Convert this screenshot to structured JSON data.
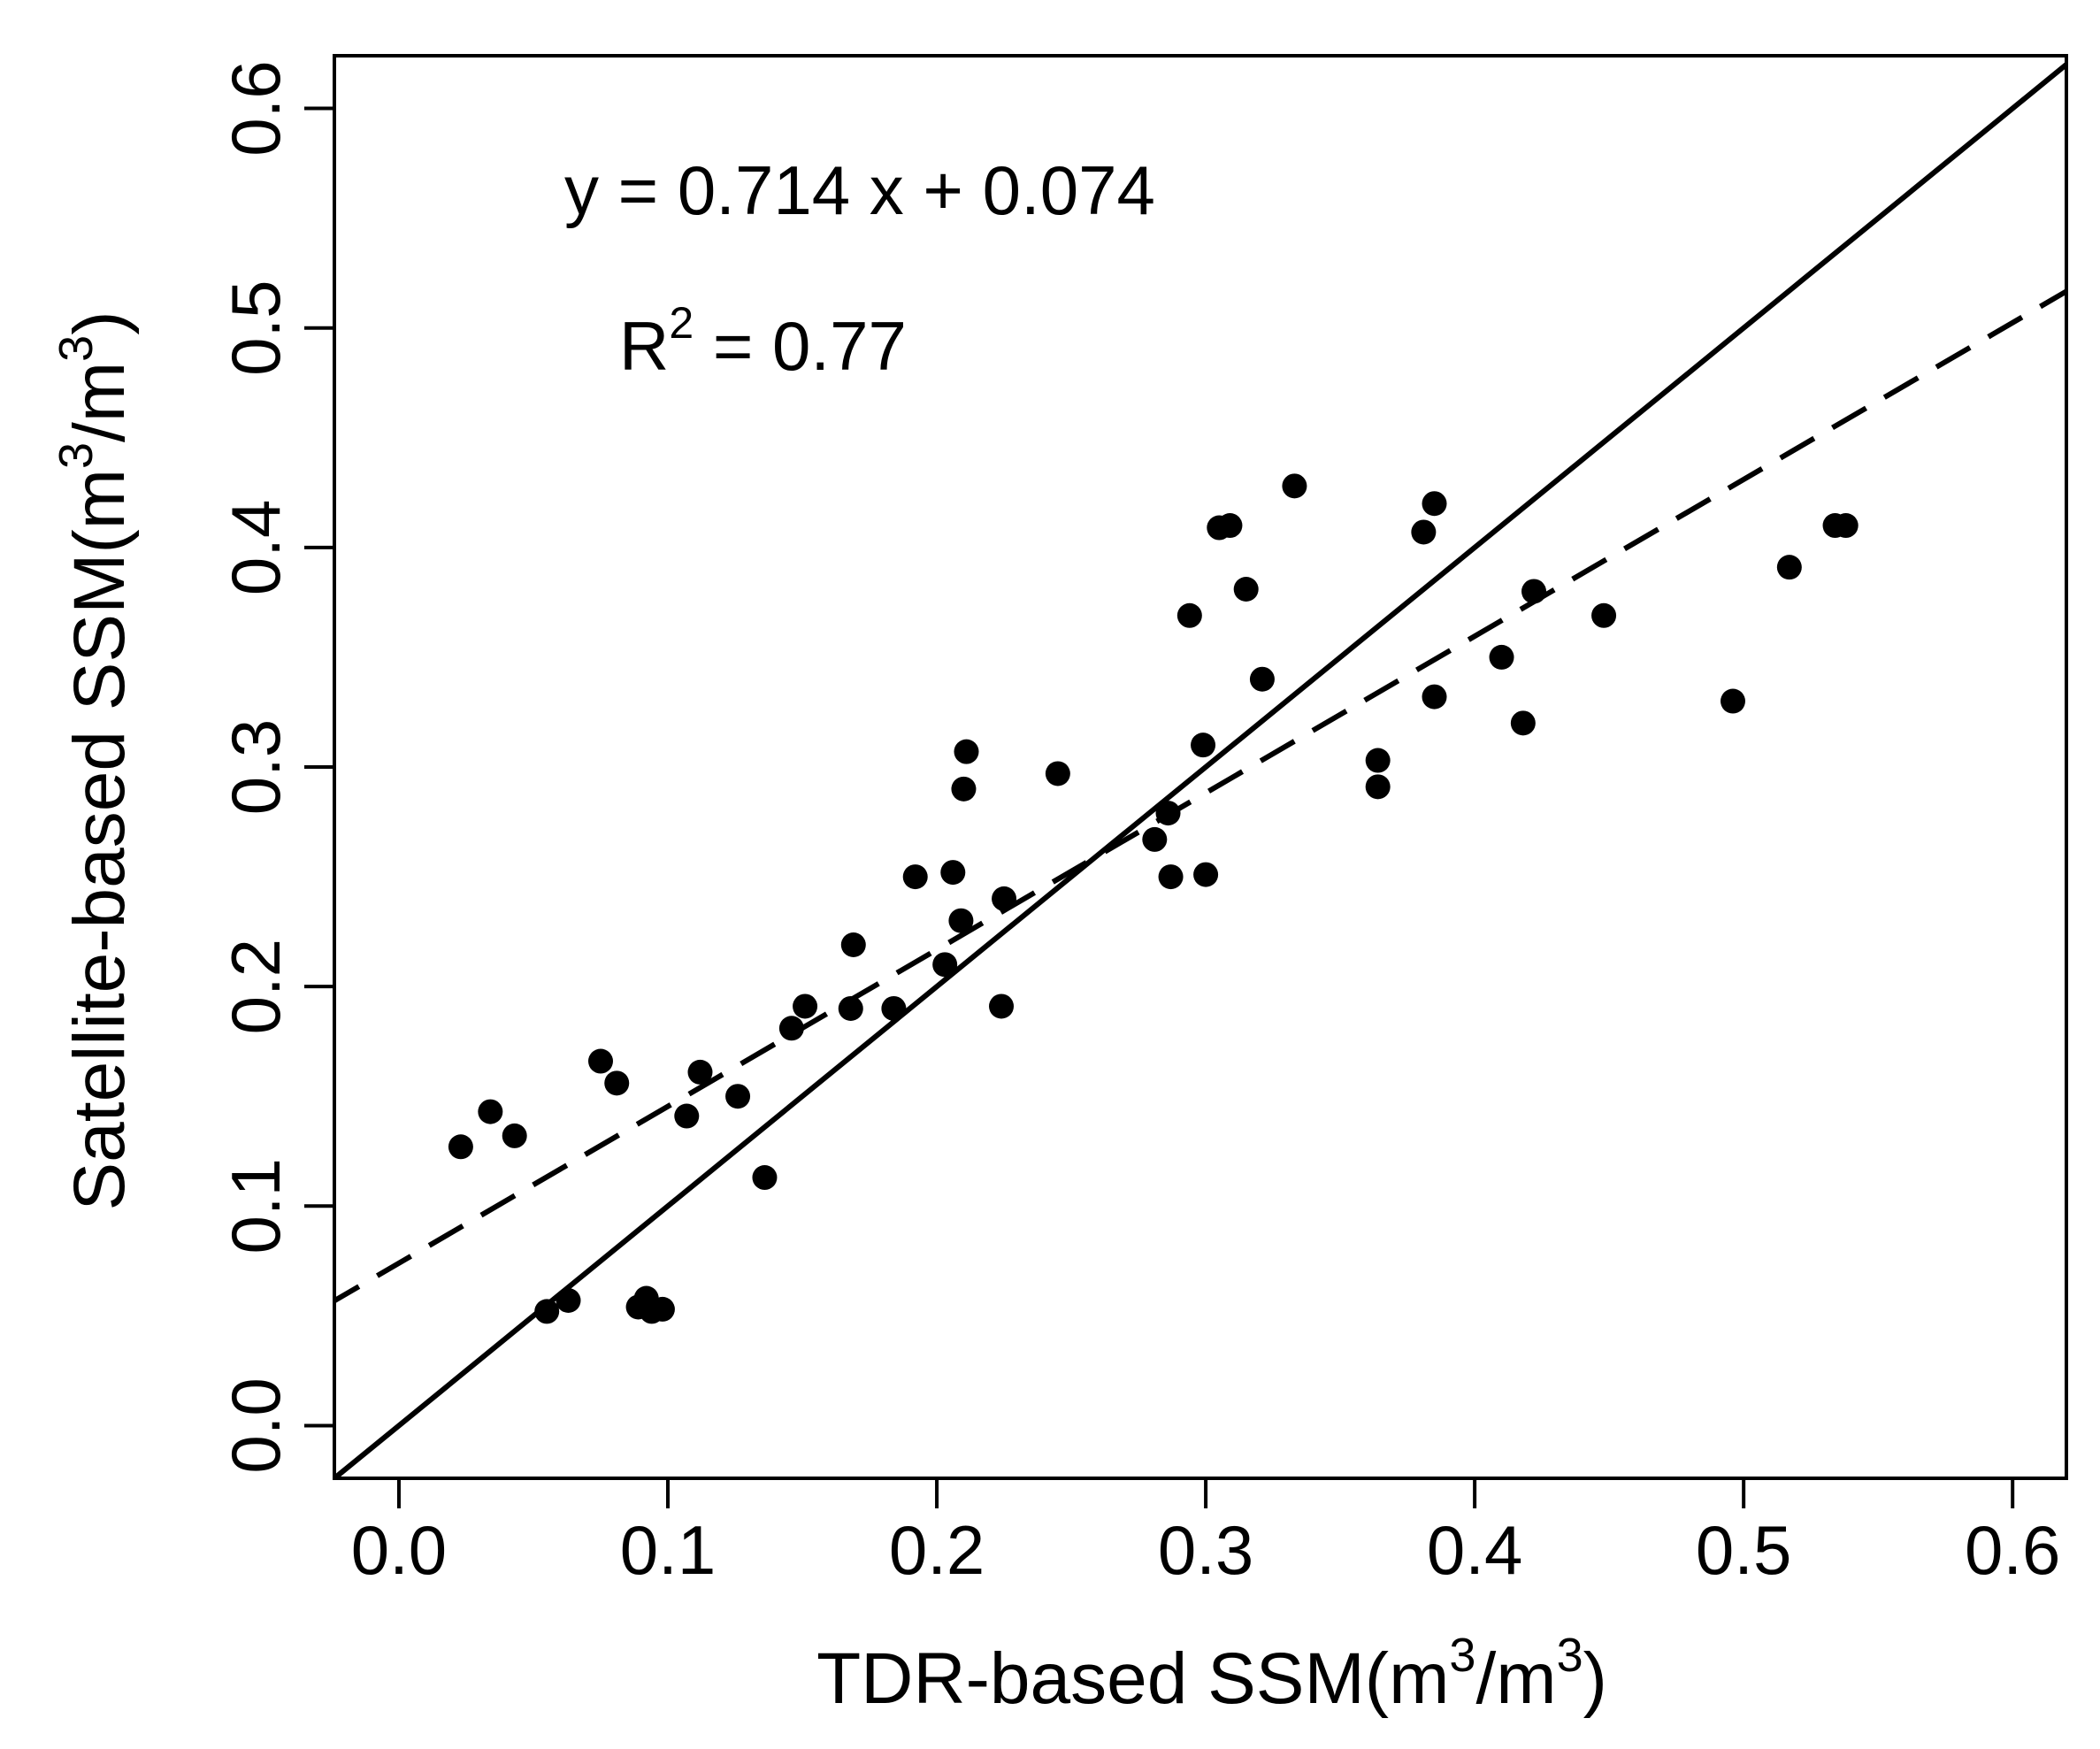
{
  "chart_data": {
    "type": "scatter",
    "xlabel": {
      "base": "TDR-based SSM(m",
      "sup1": "3",
      "mid": "/m",
      "sup2": "3",
      "end": ")"
    },
    "ylabel": {
      "base": "Satellite-based SSM(m",
      "sup1": "3",
      "mid": "/m",
      "sup2": "3",
      "end": ")"
    },
    "xlim": [
      -0.024,
      0.62
    ],
    "ylim": [
      -0.024,
      0.624
    ],
    "xticks": [
      0.0,
      0.1,
      0.2,
      0.3,
      0.4,
      0.5,
      0.6
    ],
    "yticks": [
      0.0,
      0.1,
      0.2,
      0.3,
      0.4,
      0.5,
      0.6
    ],
    "xtick_labels": [
      "0.0",
      "0.1",
      "0.2",
      "0.3",
      "0.4",
      "0.5",
      "0.6"
    ],
    "ytick_labels": [
      "0.0",
      "0.1",
      "0.2",
      "0.3",
      "0.4",
      "0.5",
      "0.6"
    ],
    "annotations": {
      "equation": "y = 0.714 x + 0.074",
      "r2_prefix": "R",
      "r2_sup": "2",
      "r2_value": " = 0.77"
    },
    "lines": [
      {
        "name": "1:1 line",
        "style": "solid",
        "slope": 1.0,
        "intercept": 0.0
      },
      {
        "name": "regression",
        "style": "dashed",
        "slope": 0.714,
        "intercept": 0.074
      }
    ],
    "color": "#000000",
    "points": [
      {
        "x": 0.023,
        "y": 0.127
      },
      {
        "x": 0.034,
        "y": 0.143
      },
      {
        "x": 0.043,
        "y": 0.132
      },
      {
        "x": 0.055,
        "y": 0.052
      },
      {
        "x": 0.063,
        "y": 0.057
      },
      {
        "x": 0.075,
        "y": 0.166
      },
      {
        "x": 0.081,
        "y": 0.156
      },
      {
        "x": 0.089,
        "y": 0.054
      },
      {
        "x": 0.092,
        "y": 0.058
      },
      {
        "x": 0.094,
        "y": 0.052
      },
      {
        "x": 0.098,
        "y": 0.053
      },
      {
        "x": 0.107,
        "y": 0.141
      },
      {
        "x": 0.112,
        "y": 0.161
      },
      {
        "x": 0.126,
        "y": 0.15
      },
      {
        "x": 0.136,
        "y": 0.113
      },
      {
        "x": 0.146,
        "y": 0.181
      },
      {
        "x": 0.151,
        "y": 0.191
      },
      {
        "x": 0.168,
        "y": 0.19
      },
      {
        "x": 0.169,
        "y": 0.219
      },
      {
        "x": 0.184,
        "y": 0.19
      },
      {
        "x": 0.192,
        "y": 0.25
      },
      {
        "x": 0.203,
        "y": 0.21
      },
      {
        "x": 0.206,
        "y": 0.252
      },
      {
        "x": 0.209,
        "y": 0.23
      },
      {
        "x": 0.21,
        "y": 0.29
      },
      {
        "x": 0.211,
        "y": 0.307
      },
      {
        "x": 0.224,
        "y": 0.191
      },
      {
        "x": 0.225,
        "y": 0.24
      },
      {
        "x": 0.245,
        "y": 0.297
      },
      {
        "x": 0.281,
        "y": 0.267
      },
      {
        "x": 0.286,
        "y": 0.279
      },
      {
        "x": 0.287,
        "y": 0.25
      },
      {
        "x": 0.294,
        "y": 0.369
      },
      {
        "x": 0.299,
        "y": 0.31
      },
      {
        "x": 0.3,
        "y": 0.251
      },
      {
        "x": 0.305,
        "y": 0.409
      },
      {
        "x": 0.309,
        "y": 0.41
      },
      {
        "x": 0.315,
        "y": 0.381
      },
      {
        "x": 0.321,
        "y": 0.34
      },
      {
        "x": 0.333,
        "y": 0.428
      },
      {
        "x": 0.364,
        "y": 0.303
      },
      {
        "x": 0.364,
        "y": 0.291
      },
      {
        "x": 0.381,
        "y": 0.407
      },
      {
        "x": 0.385,
        "y": 0.42
      },
      {
        "x": 0.385,
        "y": 0.332
      },
      {
        "x": 0.41,
        "y": 0.35
      },
      {
        "x": 0.418,
        "y": 0.32
      },
      {
        "x": 0.422,
        "y": 0.38
      },
      {
        "x": 0.448,
        "y": 0.369
      },
      {
        "x": 0.496,
        "y": 0.33
      },
      {
        "x": 0.517,
        "y": 0.391
      },
      {
        "x": 0.534,
        "y": 0.41
      },
      {
        "x": 0.538,
        "y": 0.41
      }
    ]
  }
}
